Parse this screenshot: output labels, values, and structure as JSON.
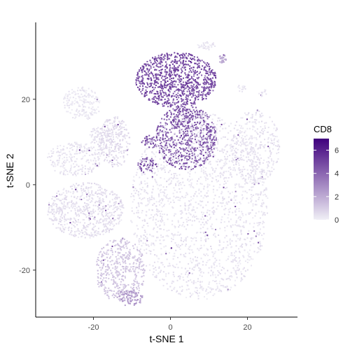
{
  "chart_data": {
    "type": "scatter",
    "title": "",
    "xlabel": "t-SNE 1",
    "ylabel": "t-SNE 2",
    "xlim": [
      -35,
      33
    ],
    "ylim": [
      -31,
      38
    ],
    "x_ticks": [
      -20,
      0,
      20
    ],
    "y_ticks": [
      -20,
      0,
      20
    ],
    "x_tick_labels": [
      "-20",
      "0",
      "20"
    ],
    "y_tick_labels": [
      "-20",
      "0",
      "20"
    ],
    "grid": false,
    "color_variable": "CD8",
    "color_scale": {
      "min": 0,
      "max": 7,
      "low_color": "#f0eff6",
      "high_color": "#3f007d",
      "ticks": [
        0,
        2,
        4,
        6
      ],
      "tick_labels": [
        "0",
        "2",
        "4",
        "6"
      ]
    },
    "legend_position": "right",
    "clusters": [
      {
        "cx": 1.5,
        "cy": 24.5,
        "rx": 10.5,
        "ry": 6.5,
        "value": 4.8,
        "n": 900
      },
      {
        "cx": 4.0,
        "cy": 11.0,
        "rx": 8.0,
        "ry": 7.5,
        "value": 4.5,
        "n": 700
      },
      {
        "cx": -6.0,
        "cy": 4.5,
        "rx": 2.5,
        "ry": 1.8,
        "value": 4.5,
        "n": 60
      },
      {
        "cx": -5.5,
        "cy": 10.0,
        "rx": 2.0,
        "ry": 1.5,
        "value": 4.6,
        "n": 40
      },
      {
        "cx": 7.5,
        "cy": -5.0,
        "rx": 18.0,
        "ry": 22.0,
        "value": 0.35,
        "n": 2300
      },
      {
        "cx": 22.0,
        "cy": 9.0,
        "rx": 6.5,
        "ry": 8.5,
        "value": 0.4,
        "n": 350
      },
      {
        "cx": -23.0,
        "cy": 19.0,
        "rx": 5.0,
        "ry": 4.0,
        "value": 0.25,
        "n": 200
      },
      {
        "cx": -18.0,
        "cy": 11.0,
        "rx": 3.0,
        "ry": 3.0,
        "value": 0.4,
        "n": 100
      },
      {
        "cx": -14.5,
        "cy": 10.0,
        "rx": 4.0,
        "ry": 6.0,
        "value": 0.6,
        "n": 250
      },
      {
        "cx": -25.0,
        "cy": 6.0,
        "rx": 7.0,
        "ry": 4.0,
        "value": 0.35,
        "n": 250
      },
      {
        "cx": -22.0,
        "cy": -6.0,
        "rx": 10.0,
        "ry": 6.5,
        "value": 0.5,
        "n": 650
      },
      {
        "cx": -13.0,
        "cy": -20.0,
        "rx": 6.5,
        "ry": 7.5,
        "value": 1.2,
        "n": 450
      },
      {
        "cx": -10.5,
        "cy": -26.5,
        "rx": 3.5,
        "ry": 2.0,
        "value": 2.5,
        "n": 80
      },
      {
        "cx": 13.5,
        "cy": 29.5,
        "rx": 1.0,
        "ry": 1.0,
        "value": 2.0,
        "n": 30
      },
      {
        "cx": 9.5,
        "cy": 32.5,
        "rx": 2.5,
        "ry": 1.0,
        "value": 0.3,
        "n": 40
      },
      {
        "cx": 18.5,
        "cy": 22.5,
        "rx": 1.0,
        "ry": 1.0,
        "value": 0.3,
        "n": 15
      },
      {
        "cx": 24.0,
        "cy": 21.5,
        "rx": 1.0,
        "ry": 1.0,
        "value": 0.3,
        "n": 15
      }
    ]
  }
}
